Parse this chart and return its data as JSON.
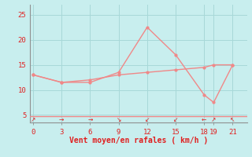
{
  "x": [
    0,
    3,
    6,
    9,
    12,
    15,
    18,
    19,
    21
  ],
  "y_rafales": [
    13,
    11.5,
    11.5,
    13.5,
    22.5,
    17,
    9,
    7.5,
    15
  ],
  "y_moyen": [
    13,
    11.5,
    12,
    13,
    13.5,
    14,
    14.5,
    15,
    15
  ],
  "arrows": [
    "↗",
    "→",
    "→",
    "↘",
    "↙",
    "↙",
    "←",
    "↗",
    "↖"
  ],
  "xlabel": "Vent moyen/en rafales ( km/h )",
  "xlim": [
    -0.3,
    22.5
  ],
  "ylim": [
    3.5,
    27
  ],
  "yticks": [
    5,
    10,
    15,
    20,
    25
  ],
  "xticks": [
    0,
    3,
    6,
    9,
    12,
    15,
    18,
    19,
    21
  ],
  "bg_color": "#c8eeee",
  "line_color": "#f08888",
  "grid_color": "#a8d8d8",
  "text_color": "#e02020",
  "spine_color": "#909090"
}
